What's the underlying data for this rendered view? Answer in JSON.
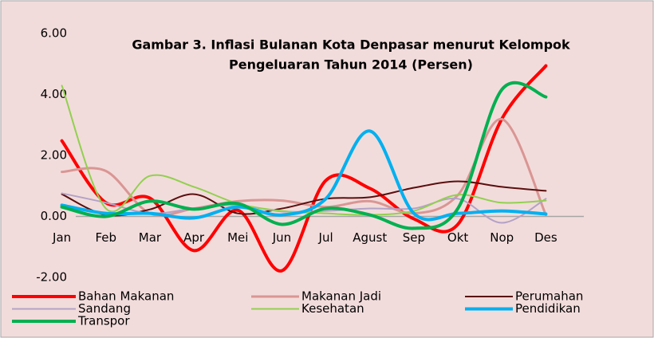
{
  "chart_data": {
    "type": "line",
    "title_lines": [
      "Gambar 3.  Inflasi Bulanan Kota Denpasar menurut Kelompok",
      "Pengeluaran Tahun 2014 (Persen)"
    ],
    "categories": [
      "Jan",
      "Feb",
      "Mar",
      "Apr",
      "Mei",
      "Jun",
      "Jul",
      "Agust",
      "Sep",
      "Okt",
      "Nop",
      "Des"
    ],
    "ylim": [
      -2,
      6
    ],
    "yticks": [
      {
        "value": -2,
        "label": "-2.00"
      },
      {
        "value": 0,
        "label": "0.00"
      },
      {
        "value": 2,
        "label": "2.00"
      },
      {
        "value": 4,
        "label": "4.00"
      },
      {
        "value": 6,
        "label": "6.00"
      }
    ],
    "smooth": true,
    "series": [
      {
        "name": "Bahan Makanan",
        "color": "#ff0000",
        "width": 4,
        "values": [
          2.48,
          0.45,
          0.6,
          -1.12,
          0.2,
          -1.78,
          1.18,
          0.92,
          -0.08,
          -0.26,
          3.2,
          4.94
        ]
      },
      {
        "name": "Makanan Jadi",
        "color": "#d99694",
        "width": 3,
        "values": [
          1.46,
          1.49,
          0.1,
          0.26,
          0.5,
          0.52,
          0.31,
          0.5,
          0.1,
          0.7,
          3.19,
          0.05
        ]
      },
      {
        "name": "Perumahan",
        "color": "#5a0f0f",
        "width": 2,
        "values": [
          0.73,
          0.05,
          0.23,
          0.73,
          0.1,
          0.26,
          0.58,
          0.63,
          0.94,
          1.15,
          0.97,
          0.84
        ]
      },
      {
        "name": "Sandang",
        "color": "#b3a2c7",
        "width": 2,
        "values": [
          0.76,
          0.45,
          0.1,
          0.26,
          0.37,
          0.16,
          0.18,
          0.26,
          0.26,
          0.58,
          -0.21,
          0.58
        ]
      },
      {
        "name": "Kesehatan",
        "color": "#92d050",
        "width": 2,
        "values": [
          4.29,
          0.26,
          1.33,
          0.97,
          0.42,
          0.18,
          0.1,
          0.05,
          0.18,
          0.71,
          0.45,
          0.52
        ]
      },
      {
        "name": "Pendidikan",
        "color": "#00b0f0",
        "width": 4,
        "values": [
          0.37,
          0.1,
          0.1,
          -0.05,
          0.31,
          0.05,
          0.58,
          2.8,
          0.1,
          0.1,
          0.18,
          0.08
        ]
      },
      {
        "name": "Transpor",
        "color": "#00b050",
        "width": 4,
        "values": [
          0.31,
          0,
          0.5,
          0.24,
          0.42,
          -0.26,
          0.26,
          0.05,
          -0.39,
          0.26,
          4.16,
          3.92
        ]
      }
    ]
  }
}
